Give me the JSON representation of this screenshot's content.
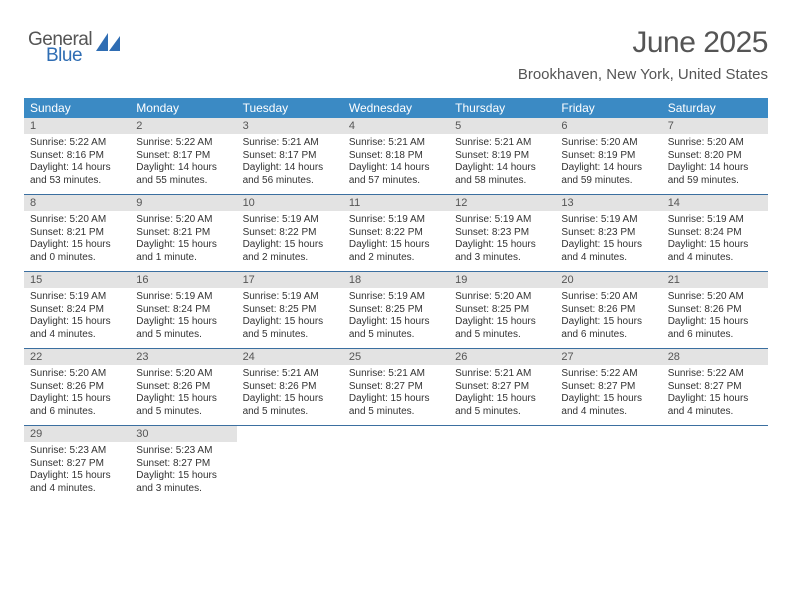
{
  "logo": {
    "general": "General",
    "blue": "Blue"
  },
  "title": "June 2025",
  "location": "Brookhaven, New York, United States",
  "colors": {
    "header_bg": "#3b8ac4",
    "header_text": "#ffffff",
    "daynum_bg": "#e3e3e3",
    "rule": "#3b6fa0",
    "text": "#333333",
    "muted_text": "#555555",
    "logo_blue": "#2f6db3"
  },
  "weekdays": [
    "Sunday",
    "Monday",
    "Tuesday",
    "Wednesday",
    "Thursday",
    "Friday",
    "Saturday"
  ],
  "weeks": [
    [
      {
        "n": "1",
        "sr": "Sunrise: 5:22 AM",
        "ss": "Sunset: 8:16 PM",
        "dl": "Daylight: 14 hours and 53 minutes."
      },
      {
        "n": "2",
        "sr": "Sunrise: 5:22 AM",
        "ss": "Sunset: 8:17 PM",
        "dl": "Daylight: 14 hours and 55 minutes."
      },
      {
        "n": "3",
        "sr": "Sunrise: 5:21 AM",
        "ss": "Sunset: 8:17 PM",
        "dl": "Daylight: 14 hours and 56 minutes."
      },
      {
        "n": "4",
        "sr": "Sunrise: 5:21 AM",
        "ss": "Sunset: 8:18 PM",
        "dl": "Daylight: 14 hours and 57 minutes."
      },
      {
        "n": "5",
        "sr": "Sunrise: 5:21 AM",
        "ss": "Sunset: 8:19 PM",
        "dl": "Daylight: 14 hours and 58 minutes."
      },
      {
        "n": "6",
        "sr": "Sunrise: 5:20 AM",
        "ss": "Sunset: 8:19 PM",
        "dl": "Daylight: 14 hours and 59 minutes."
      },
      {
        "n": "7",
        "sr": "Sunrise: 5:20 AM",
        "ss": "Sunset: 8:20 PM",
        "dl": "Daylight: 14 hours and 59 minutes."
      }
    ],
    [
      {
        "n": "8",
        "sr": "Sunrise: 5:20 AM",
        "ss": "Sunset: 8:21 PM",
        "dl": "Daylight: 15 hours and 0 minutes."
      },
      {
        "n": "9",
        "sr": "Sunrise: 5:20 AM",
        "ss": "Sunset: 8:21 PM",
        "dl": "Daylight: 15 hours and 1 minute."
      },
      {
        "n": "10",
        "sr": "Sunrise: 5:19 AM",
        "ss": "Sunset: 8:22 PM",
        "dl": "Daylight: 15 hours and 2 minutes."
      },
      {
        "n": "11",
        "sr": "Sunrise: 5:19 AM",
        "ss": "Sunset: 8:22 PM",
        "dl": "Daylight: 15 hours and 2 minutes."
      },
      {
        "n": "12",
        "sr": "Sunrise: 5:19 AM",
        "ss": "Sunset: 8:23 PM",
        "dl": "Daylight: 15 hours and 3 minutes."
      },
      {
        "n": "13",
        "sr": "Sunrise: 5:19 AM",
        "ss": "Sunset: 8:23 PM",
        "dl": "Daylight: 15 hours and 4 minutes."
      },
      {
        "n": "14",
        "sr": "Sunrise: 5:19 AM",
        "ss": "Sunset: 8:24 PM",
        "dl": "Daylight: 15 hours and 4 minutes."
      }
    ],
    [
      {
        "n": "15",
        "sr": "Sunrise: 5:19 AM",
        "ss": "Sunset: 8:24 PM",
        "dl": "Daylight: 15 hours and 4 minutes."
      },
      {
        "n": "16",
        "sr": "Sunrise: 5:19 AM",
        "ss": "Sunset: 8:24 PM",
        "dl": "Daylight: 15 hours and 5 minutes."
      },
      {
        "n": "17",
        "sr": "Sunrise: 5:19 AM",
        "ss": "Sunset: 8:25 PM",
        "dl": "Daylight: 15 hours and 5 minutes."
      },
      {
        "n": "18",
        "sr": "Sunrise: 5:19 AM",
        "ss": "Sunset: 8:25 PM",
        "dl": "Daylight: 15 hours and 5 minutes."
      },
      {
        "n": "19",
        "sr": "Sunrise: 5:20 AM",
        "ss": "Sunset: 8:25 PM",
        "dl": "Daylight: 15 hours and 5 minutes."
      },
      {
        "n": "20",
        "sr": "Sunrise: 5:20 AM",
        "ss": "Sunset: 8:26 PM",
        "dl": "Daylight: 15 hours and 6 minutes."
      },
      {
        "n": "21",
        "sr": "Sunrise: 5:20 AM",
        "ss": "Sunset: 8:26 PM",
        "dl": "Daylight: 15 hours and 6 minutes."
      }
    ],
    [
      {
        "n": "22",
        "sr": "Sunrise: 5:20 AM",
        "ss": "Sunset: 8:26 PM",
        "dl": "Daylight: 15 hours and 6 minutes."
      },
      {
        "n": "23",
        "sr": "Sunrise: 5:20 AM",
        "ss": "Sunset: 8:26 PM",
        "dl": "Daylight: 15 hours and 5 minutes."
      },
      {
        "n": "24",
        "sr": "Sunrise: 5:21 AM",
        "ss": "Sunset: 8:26 PM",
        "dl": "Daylight: 15 hours and 5 minutes."
      },
      {
        "n": "25",
        "sr": "Sunrise: 5:21 AM",
        "ss": "Sunset: 8:27 PM",
        "dl": "Daylight: 15 hours and 5 minutes."
      },
      {
        "n": "26",
        "sr": "Sunrise: 5:21 AM",
        "ss": "Sunset: 8:27 PM",
        "dl": "Daylight: 15 hours and 5 minutes."
      },
      {
        "n": "27",
        "sr": "Sunrise: 5:22 AM",
        "ss": "Sunset: 8:27 PM",
        "dl": "Daylight: 15 hours and 4 minutes."
      },
      {
        "n": "28",
        "sr": "Sunrise: 5:22 AM",
        "ss": "Sunset: 8:27 PM",
        "dl": "Daylight: 15 hours and 4 minutes."
      }
    ],
    [
      {
        "n": "29",
        "sr": "Sunrise: 5:23 AM",
        "ss": "Sunset: 8:27 PM",
        "dl": "Daylight: 15 hours and 4 minutes."
      },
      {
        "n": "30",
        "sr": "Sunrise: 5:23 AM",
        "ss": "Sunset: 8:27 PM",
        "dl": "Daylight: 15 hours and 3 minutes."
      },
      null,
      null,
      null,
      null,
      null
    ]
  ]
}
